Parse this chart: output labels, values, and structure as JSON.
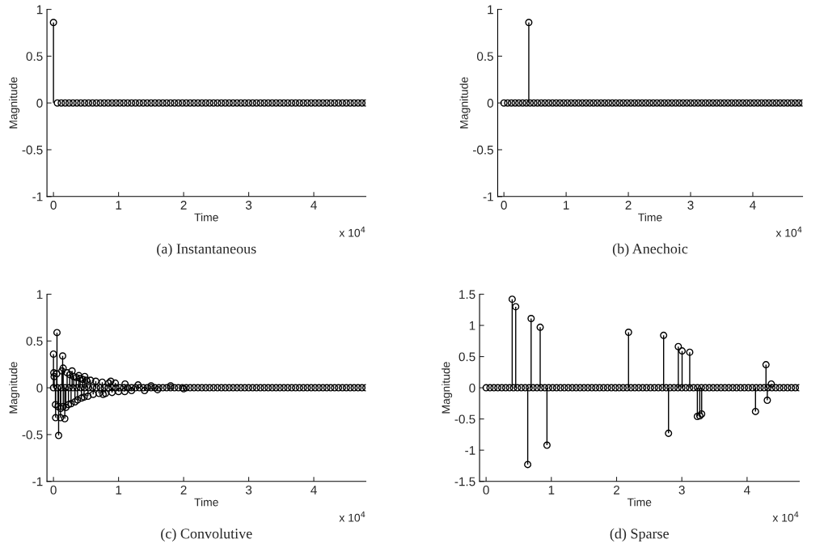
{
  "chart_data": [
    {
      "type": "lollipop",
      "title": "(a) Instantaneous",
      "xlabel": "Time",
      "ylabel": "Magnitude",
      "annotations": [
        "x 10$^{4}$"
      ],
      "marker": "circle",
      "xlim": [
        -0.1,
        4.8
      ],
      "ylim": [
        -1,
        1
      ],
      "xticks": [
        0,
        1,
        2,
        3,
        4
      ],
      "yticks": [
        -1,
        -0.5,
        0,
        0.5,
        1
      ],
      "series": [
        {
          "color": "#000000",
          "x": [
            0.06,
            0.12,
            0.18,
            0.24,
            0.3,
            0.36,
            0.42,
            0.48,
            0.54,
            0.6,
            0.66,
            0.72,
            0.78,
            0.84,
            0.9,
            0.96,
            1.02,
            1.08,
            1.14,
            1.2,
            1.26,
            1.32,
            1.38,
            1.44,
            1.5,
            1.56,
            1.62,
            1.68,
            1.74,
            1.8,
            1.86,
            1.92,
            1.98,
            2.04,
            2.1,
            2.16,
            2.22,
            2.28,
            2.34,
            2.4,
            2.46,
            2.52,
            2.58,
            2.64,
            2.7,
            2.76,
            2.82,
            2.88,
            2.94,
            3,
            3.06,
            3.12,
            3.18,
            3.24,
            3.3,
            3.36,
            3.42,
            3.48,
            3.54,
            3.6,
            3.66,
            3.72,
            3.78,
            3.84,
            3.9,
            3.96,
            4.02,
            4.08,
            4.14,
            4.2,
            4.26,
            4.32,
            4.38,
            4.44,
            4.5,
            4.56,
            4.62,
            4.68,
            4.74,
            4.8
          ],
          "values": [
            0,
            0,
            0,
            0,
            0,
            0,
            0,
            0,
            0,
            0,
            0,
            0,
            0,
            0,
            0,
            0,
            0,
            0,
            0,
            0,
            0,
            0,
            0,
            0,
            0,
            0,
            0,
            0,
            0,
            0,
            0,
            0,
            0,
            0,
            0,
            0,
            0,
            0,
            0,
            0,
            0,
            0,
            0,
            0,
            0,
            0,
            0,
            0,
            0,
            0,
            0,
            0,
            0,
            0,
            0,
            0,
            0,
            0,
            0,
            0,
            0,
            0,
            0,
            0,
            0,
            0,
            0,
            0,
            0,
            0,
            0,
            0,
            0,
            0,
            0,
            0,
            0,
            0,
            0,
            0
          ]
        },
        {
          "color": "#000000",
          "x": [
            0
          ],
          "values": [
            0.86
          ]
        }
      ]
    },
    {
      "type": "lollipop",
      "title": "(b) Anechoic",
      "xlabel": "Time",
      "ylabel": "Magnitude",
      "annotations": [
        "x 10$^{4}$"
      ],
      "marker": "circle",
      "xlim": [
        -0.1,
        4.8
      ],
      "ylim": [
        -1,
        1
      ],
      "xticks": [
        0,
        1,
        2,
        3,
        4
      ],
      "yticks": [
        -1,
        -0.5,
        0,
        0.5,
        1
      ],
      "series": [
        {
          "color": "#000000",
          "x": [
            0,
            0.06,
            0.12,
            0.18,
            0.24,
            0.3,
            0.36,
            0.42,
            0.48,
            0.54,
            0.6,
            0.66,
            0.72,
            0.78,
            0.84,
            0.9,
            0.96,
            1.02,
            1.08,
            1.14,
            1.2,
            1.26,
            1.32,
            1.38,
            1.44,
            1.5,
            1.56,
            1.62,
            1.68,
            1.74,
            1.8,
            1.86,
            1.92,
            1.98,
            2.04,
            2.1,
            2.16,
            2.22,
            2.28,
            2.34,
            2.4,
            2.46,
            2.52,
            2.58,
            2.64,
            2.7,
            2.76,
            2.82,
            2.88,
            2.94,
            3,
            3.06,
            3.12,
            3.18,
            3.24,
            3.3,
            3.36,
            3.42,
            3.48,
            3.54,
            3.6,
            3.66,
            3.72,
            3.78,
            3.84,
            3.9,
            3.96,
            4.02,
            4.08,
            4.14,
            4.2,
            4.26,
            4.32,
            4.38,
            4.44,
            4.5,
            4.56,
            4.62,
            4.68,
            4.74,
            4.8
          ],
          "values": [
            0,
            0,
            0,
            0,
            0,
            0,
            0,
            0,
            0,
            0,
            0,
            0,
            0,
            0,
            0,
            0,
            0,
            0,
            0,
            0,
            0,
            0,
            0,
            0,
            0,
            0,
            0,
            0,
            0,
            0,
            0,
            0,
            0,
            0,
            0,
            0,
            0,
            0,
            0,
            0,
            0,
            0,
            0,
            0,
            0,
            0,
            0,
            0,
            0,
            0,
            0,
            0,
            0,
            0,
            0,
            0,
            0,
            0,
            0,
            0,
            0,
            0,
            0,
            0,
            0,
            0,
            0,
            0,
            0,
            0,
            0,
            0,
            0,
            0,
            0,
            0,
            0,
            0,
            0,
            0,
            0
          ]
        },
        {
          "color": "#000000",
          "x": [
            0.4
          ],
          "values": [
            0.86
          ]
        }
      ]
    },
    {
      "type": "lollipop",
      "title": "(c) Convolutive",
      "xlabel": "Time",
      "ylabel": "Magnitude",
      "annotations": [
        "x 10$^{4}$"
      ],
      "marker": "circle",
      "xlim": [
        -0.1,
        4.8
      ],
      "ylim": [
        -1,
        1
      ],
      "xticks": [
        0,
        1,
        2,
        3,
        4
      ],
      "yticks": [
        -1,
        -0.5,
        0,
        0.5,
        1
      ],
      "series": [
        {
          "color": "#000000",
          "x": [
            0,
            0.06,
            0.12,
            0.18,
            0.24,
            0.3,
            0.36,
            0.42,
            0.48,
            0.54,
            0.6,
            0.66,
            0.72,
            0.78,
            0.84,
            0.9,
            0.96,
            1.02,
            1.08,
            1.14,
            1.2,
            1.26,
            1.32,
            1.38,
            1.44,
            1.5,
            1.56,
            1.62,
            1.68,
            1.74,
            1.8,
            1.86,
            1.92,
            1.98,
            2.04,
            2.1,
            2.16,
            2.22,
            2.28,
            2.34,
            2.4,
            2.46,
            2.52,
            2.58,
            2.64,
            2.7,
            2.76,
            2.82,
            2.88,
            2.94,
            3,
            3.06,
            3.12,
            3.18,
            3.24,
            3.3,
            3.36,
            3.42,
            3.48,
            3.54,
            3.6,
            3.66,
            3.72,
            3.78,
            3.84,
            3.9,
            3.96,
            4.02,
            4.08,
            4.14,
            4.2,
            4.26,
            4.32,
            4.38,
            4.44,
            4.5,
            4.56,
            4.62,
            4.68,
            4.74,
            4.8
          ],
          "values": [
            0,
            0,
            0,
            0,
            0,
            0,
            0,
            0,
            0,
            0,
            0,
            0,
            0,
            0,
            0,
            0,
            0,
            0,
            0,
            0,
            0,
            0,
            0,
            0,
            0,
            0,
            0,
            0,
            0,
            0,
            0,
            0,
            0,
            0,
            0,
            0,
            0,
            0,
            0,
            0,
            0,
            0,
            0,
            0,
            0,
            0,
            0,
            0,
            0,
            0,
            0,
            0,
            0,
            0,
            0,
            0,
            0,
            0,
            0,
            0,
            0,
            0,
            0,
            0,
            0,
            0,
            0,
            0,
            0,
            0,
            0,
            0,
            0,
            0,
            0,
            0,
            0,
            0,
            0,
            0,
            0
          ]
        },
        {
          "color": "#000000",
          "x": [
            0.01,
            0.03,
            0.05,
            0.07,
            0.09,
            0.11,
            0.13,
            0.15,
            0.17,
            0.19,
            0.21,
            0.23,
            0.25,
            0.27,
            0.31,
            0.33,
            0.35,
            0.37,
            0.41,
            0.43,
            0.45,
            0.47,
            0.51,
            0.53,
            0.57,
            0.61,
            0.65,
            0.7,
            0.75,
            0.8,
            0.85,
            0.9,
            0.95,
            1,
            1.1,
            1.2,
            1.3,
            1.4,
            1.5,
            1.6,
            1.8,
            2
          ],
          "values": [
            0.12,
            -0.18,
            0.15,
            -0.2,
            null,
            -0.22,
            0.18,
            -0.2,
            null,
            -0.21,
            0.16,
            -0.18,
            0.14,
            -0.17,
            0.12,
            -0.15,
            0.11,
            -0.13,
            0.1,
            -0.11,
            0.09,
            -0.1,
            0.08,
            -0.09,
            0.08,
            -0.07,
            0.07,
            -0.06,
            0.06,
            -0.06,
            0.05,
            -0.05,
            0.05,
            -0.04,
            0.04,
            -0.03,
            0.03,
            -0.03,
            0.02,
            -0.02,
            0.02,
            -0.01
          ]
        },
        {
          "color": "#000000",
          "x": [
            0,
            0.005,
            0.033,
            0.054,
            0.079,
            0.108,
            0.141,
            0.149,
            0.174,
            0.286,
            0.39,
            0.481,
            0.763,
            0.88,
            1.095
          ],
          "values": [
            0.36,
            0.16,
            -0.32,
            0.59,
            -0.51,
            -0.32,
            0.34,
            0.21,
            -0.33,
            0.18,
            0.13,
            0.12,
            -0.07,
            0.07,
            -0.04
          ]
        }
      ]
    },
    {
      "type": "lollipop",
      "title": "(d) Sparse",
      "xlabel": "Time",
      "ylabel": "Magnitude",
      "annotations": [
        "x 10$^{4}$"
      ],
      "marker": "circle",
      "xlim": [
        -0.1,
        4.8
      ],
      "ylim": [
        -1.5,
        1.5
      ],
      "xticks": [
        0,
        1,
        2,
        3,
        4
      ],
      "yticks": [
        -1.5,
        -1,
        -0.5,
        0,
        0.5,
        1,
        1.5
      ],
      "series": [
        {
          "color": "#000000",
          "x": [
            0,
            0.06,
            0.12,
            0.18,
            0.24,
            0.3,
            0.36,
            0.42,
            0.48,
            0.54,
            0.6,
            0.66,
            0.72,
            0.78,
            0.84,
            0.9,
            0.96,
            1.02,
            1.08,
            1.14,
            1.2,
            1.26,
            1.32,
            1.38,
            1.44,
            1.5,
            1.56,
            1.62,
            1.68,
            1.74,
            1.8,
            1.86,
            1.92,
            1.98,
            2.04,
            2.1,
            2.16,
            2.22,
            2.28,
            2.34,
            2.4,
            2.46,
            2.52,
            2.58,
            2.64,
            2.7,
            2.76,
            2.82,
            2.88,
            2.94,
            3,
            3.06,
            3.12,
            3.18,
            3.24,
            3.3,
            3.36,
            3.42,
            3.48,
            3.54,
            3.6,
            3.66,
            3.72,
            3.78,
            3.84,
            3.9,
            3.96,
            4.02,
            4.08,
            4.14,
            4.2,
            4.26,
            4.32,
            4.38,
            4.44,
            4.5,
            4.56,
            4.62,
            4.68,
            4.74,
            4.8
          ],
          "values": [
            0,
            0,
            0,
            0,
            0,
            0,
            0,
            0,
            0,
            0,
            0,
            0,
            0,
            0,
            0,
            0,
            0,
            0,
            0,
            0,
            0,
            0,
            0,
            0,
            0,
            0,
            0,
            0,
            0,
            0,
            0,
            0,
            0,
            0,
            0,
            0,
            0,
            0,
            0,
            0,
            0,
            0,
            0,
            0,
            0,
            0,
            0,
            0,
            0,
            0,
            0,
            0,
            0,
            0,
            0,
            0,
            0,
            0,
            0,
            0,
            0,
            0,
            0,
            0,
            0,
            0,
            0,
            0,
            0,
            0,
            0,
            0,
            0,
            0,
            0,
            0,
            0,
            0,
            0,
            0,
            0
          ]
        },
        {
          "color": "#000000",
          "x": [
            0.4,
            0.454,
            0.638,
            0.69,
            0.829,
            0.933,
            2.183,
            2.721,
            2.796,
            2.946,
            3.004,
            3.121,
            3.238,
            3.275,
            3.304,
            4.129,
            4.29,
            4.31,
            4.371
          ],
          "values": [
            1.42,
            1.3,
            -1.23,
            1.11,
            0.97,
            -0.92,
            0.89,
            0.84,
            -0.73,
            0.66,
            0.59,
            0.57,
            -0.46,
            -0.45,
            -0.42,
            -0.38,
            0.37,
            -0.2,
            0.06
          ]
        }
      ]
    }
  ]
}
